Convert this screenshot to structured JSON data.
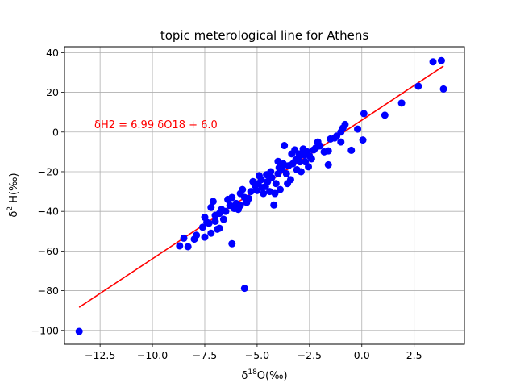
{
  "chart_data": {
    "type": "scatter",
    "title": "topic meterological line for Athens",
    "xlabel_parts": [
      "δ",
      "18",
      "O(‰)"
    ],
    "ylabel_parts": [
      "δ",
      "2",
      " H(‰)"
    ],
    "xlim": [
      -14.2,
      4.9
    ],
    "ylim": [
      -107,
      43
    ],
    "x_ticks": [
      -12.5,
      -10.0,
      -7.5,
      -5.0,
      -2.5,
      0.0,
      2.5
    ],
    "x_tick_labels": [
      "−12.5",
      "−10.0",
      "−7.5",
      "−5.0",
      "−2.5",
      "0.0",
      "2.5"
    ],
    "y_ticks": [
      -100,
      -80,
      -60,
      -40,
      -20,
      0,
      20,
      40
    ],
    "y_tick_labels": [
      "−100",
      "−80",
      "−60",
      "−40",
      "−20",
      "0",
      "20",
      "40"
    ],
    "grid": true,
    "point_color": "#0000ff",
    "line_color": "#ff0000",
    "annotation": "δH2 =  6.99 δO18 +  6.0",
    "regression": {
      "slope": 6.99,
      "intercept": 6.0,
      "x_range": [
        -13.5,
        3.9
      ]
    },
    "points": [
      [
        -13.5,
        -100.5
      ],
      [
        -5.6,
        -78.8
      ],
      [
        -8.7,
        -57.4
      ],
      [
        -8.5,
        -53.5
      ],
      [
        -8.3,
        -57.8
      ],
      [
        -8.0,
        -54.0
      ],
      [
        -7.9,
        -52.0
      ],
      [
        -7.6,
        -48.0
      ],
      [
        -7.5,
        -53.0
      ],
      [
        -7.2,
        -51.0
      ],
      [
        -7.5,
        -43.0
      ],
      [
        -7.3,
        -46.0
      ],
      [
        -7.0,
        -45.0
      ],
      [
        -6.8,
        -48.5
      ],
      [
        -6.6,
        -44.0
      ],
      [
        -6.2,
        -56.3
      ],
      [
        -7.2,
        -38.0
      ],
      [
        -7.1,
        -35.0
      ],
      [
        -6.8,
        -41.0
      ],
      [
        -6.5,
        -40.0
      ],
      [
        -6.3,
        -37.0
      ],
      [
        -6.2,
        -33.0
      ],
      [
        -6.0,
        -36.0
      ],
      [
        -5.9,
        -39.0
      ],
      [
        -5.8,
        -31.0
      ],
      [
        -5.6,
        -33.0
      ],
      [
        -5.5,
        -35.5
      ],
      [
        -5.3,
        -30.0
      ],
      [
        -5.2,
        -25.0
      ],
      [
        -5.1,
        -27.0
      ],
      [
        -5.0,
        -29.5
      ],
      [
        -4.9,
        -22.0
      ],
      [
        -4.8,
        -24.0
      ],
      [
        -4.7,
        -31.0
      ],
      [
        -4.6,
        -27.5
      ],
      [
        -4.5,
        -25.0
      ],
      [
        -4.4,
        -30.0
      ],
      [
        -4.3,
        -23.0
      ],
      [
        -4.2,
        -36.8
      ],
      [
        -4.1,
        -26.0
      ],
      [
        -4.0,
        -21.0
      ],
      [
        -3.9,
        -29.0
      ],
      [
        -3.8,
        -19.0
      ],
      [
        -3.7,
        -6.8
      ],
      [
        -3.6,
        -21.0
      ],
      [
        -3.5,
        -17.0
      ],
      [
        -3.4,
        -24.0
      ],
      [
        -3.3,
        -16.0
      ],
      [
        -3.2,
        -9.0
      ],
      [
        -3.1,
        -19.0
      ],
      [
        -3.0,
        -13.0
      ],
      [
        -2.9,
        -20.0
      ],
      [
        -2.8,
        -8.5
      ],
      [
        -2.7,
        -15.0
      ],
      [
        -2.6,
        -10.0
      ],
      [
        -2.5,
        -12.0
      ],
      [
        -2.4,
        -13.5
      ],
      [
        -2.3,
        -9.0
      ],
      [
        -2.2,
        -8.0
      ],
      [
        -2.0,
        -7.0
      ],
      [
        -1.8,
        -10.0
      ],
      [
        -1.6,
        -9.5
      ],
      [
        -1.5,
        -3.5
      ],
      [
        -1.6,
        -16.5
      ],
      [
        -1.3,
        -3.0
      ],
      [
        -1.2,
        -2.0
      ],
      [
        -1.0,
        0.0
      ],
      [
        -1.0,
        -5.0
      ],
      [
        -0.9,
        2.0
      ],
      [
        -0.8,
        3.8
      ],
      [
        -0.5,
        -9.2
      ],
      [
        -0.2,
        1.5
      ],
      [
        0.05,
        -4.0
      ],
      [
        0.1,
        9.3
      ],
      [
        1.1,
        8.5
      ],
      [
        1.9,
        14.6
      ],
      [
        2.7,
        23.1
      ],
      [
        3.4,
        35.4
      ],
      [
        3.8,
        36.0
      ],
      [
        3.9,
        21.7
      ],
      [
        -7.0,
        -42.0
      ],
      [
        -6.4,
        -34.0
      ],
      [
        -6.1,
        -38.5
      ],
      [
        -5.7,
        -29.0
      ],
      [
        -5.4,
        -33.5
      ],
      [
        -4.95,
        -26.0
      ],
      [
        -4.75,
        -28.0
      ],
      [
        -4.55,
        -21.5
      ],
      [
        -4.35,
        -20.0
      ],
      [
        -4.15,
        -31.0
      ],
      [
        -3.95,
        -18.0
      ],
      [
        -3.75,
        -16.0
      ],
      [
        -3.55,
        -26.0
      ],
      [
        -3.35,
        -11.0
      ],
      [
        -3.15,
        -14.0
      ],
      [
        -2.95,
        -15.0
      ],
      [
        -2.75,
        -11.5
      ],
      [
        -2.55,
        -17.5
      ],
      [
        -5.8,
        -37.0
      ],
      [
        -6.9,
        -49.0
      ],
      [
        -7.4,
        -45.5
      ],
      [
        -6.7,
        -39.0
      ],
      [
        -4.0,
        -14.8
      ],
      [
        -3.0,
        -11.0
      ],
      [
        -2.1,
        -5.0
      ]
    ]
  }
}
